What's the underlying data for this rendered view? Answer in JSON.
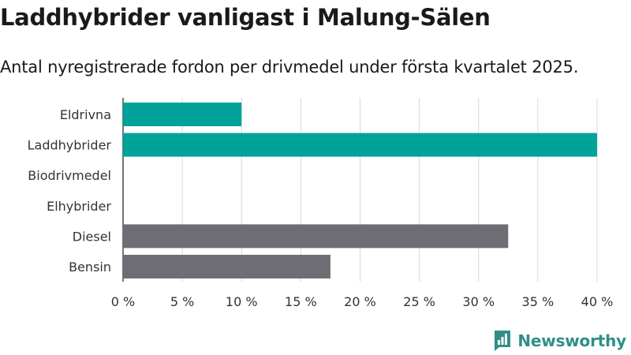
{
  "header": {
    "title": "Laddhybrider vanligast i Malung-Sälen",
    "subtitle": "Antal nyregistrerade fordon per drivmedel under första kvartalet 2025."
  },
  "brand": {
    "name": "Newsworthy",
    "color": "#2f8f86"
  },
  "chart_data": {
    "type": "bar",
    "orientation": "horizontal",
    "categories": [
      "Eldrivna",
      "Laddhybrider",
      "Biodrivmedel",
      "Elhybrider",
      "Diesel",
      "Bensin"
    ],
    "values": [
      10,
      40,
      0,
      0,
      32.5,
      17.5
    ],
    "colors": [
      "#00a39a",
      "#00a39a",
      "#00a39a",
      "#00a39a",
      "#6e6d73",
      "#6e6d73"
    ],
    "xlim": [
      0,
      40
    ],
    "xticks": [
      0,
      5,
      10,
      15,
      20,
      25,
      30,
      35,
      40
    ],
    "xtick_suffix": " %",
    "grid": true
  }
}
